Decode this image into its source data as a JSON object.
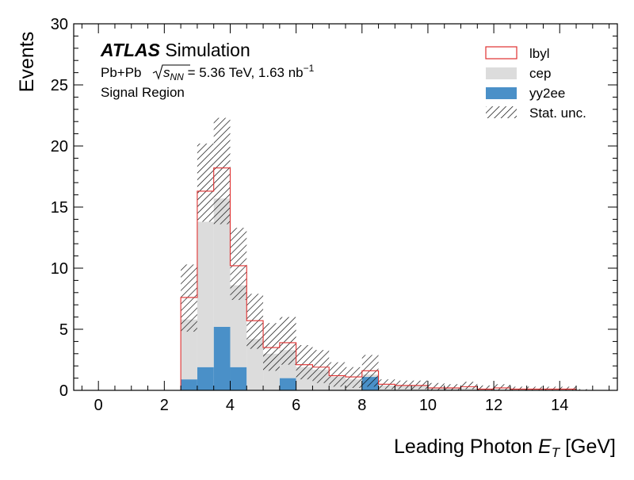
{
  "chart_data": {
    "type": "bar",
    "title": "",
    "xlabel_main": "Leading Photon ",
    "xlabel_var": "E",
    "xlabel_sub": "T",
    "xlabel_unit": " [GeV]",
    "ylabel": "Events",
    "xlim": [
      -0.75,
      15.75
    ],
    "ylim": [
      0,
      30
    ],
    "x_major_ticks": [
      0,
      2,
      4,
      6,
      8,
      10,
      12,
      14
    ],
    "y_major_ticks": [
      0,
      5,
      10,
      15,
      20,
      25,
      30
    ],
    "bin_edges": [
      0,
      0.5,
      1,
      1.5,
      2,
      2.5,
      3,
      3.5,
      4,
      4.5,
      5,
      5.5,
      6,
      6.5,
      7,
      7.5,
      8,
      8.5,
      9,
      9.5,
      10,
      10.5,
      11,
      11.5,
      12,
      12.5,
      13,
      13.5,
      14,
      14.5,
      15
    ],
    "stacked": true,
    "series": [
      {
        "name": "yy2ee",
        "values": [
          0,
          0,
          0,
          0,
          0,
          0.9,
          1.9,
          5.2,
          1.9,
          0,
          0,
          1.0,
          0,
          0,
          0,
          0,
          1.1,
          0,
          0,
          0,
          0,
          0,
          0,
          0,
          0,
          0,
          0,
          0,
          0,
          0
        ],
        "color": "#4a90c8"
      },
      {
        "name": "cep",
        "values": [
          0,
          0,
          0,
          0,
          0,
          4.9,
          11.9,
          10.5,
          6.7,
          4.2,
          3.0,
          2.3,
          1.9,
          1.7,
          1.1,
          0.9,
          0.2,
          0.4,
          0.4,
          0.4,
          0.2,
          0.2,
          0.2,
          0.1,
          0.1,
          0.1,
          0.1,
          0.1,
          0.1,
          0.0
        ],
        "color": "#dcdcdc"
      }
    ],
    "signal": {
      "name": "lbyl",
      "values": [
        0,
        0,
        0,
        0,
        0,
        7.6,
        16.3,
        18.2,
        10.2,
        5.7,
        3.5,
        3.9,
        2.1,
        1.9,
        1.2,
        1.1,
        1.6,
        0.5,
        0.4,
        0.4,
        0.2,
        0.2,
        0.3,
        0.1,
        0.2,
        0.1,
        0.1,
        0.1,
        0.1,
        0.0
      ],
      "color": "#e03030"
    },
    "stat_unc": {
      "name": "Stat. unc.",
      "low": [
        0,
        0,
        0,
        0,
        0,
        4.8,
        13.8,
        13.6,
        7.4,
        3.4,
        1.6,
        2.1,
        0.9,
        0.6,
        0.3,
        0.2,
        0.3,
        0.1,
        0.1,
        0.1,
        0.0,
        0.0,
        0.1,
        0.0,
        0.0,
        0.0,
        0.0,
        0.0,
        0.0,
        0.0
      ],
      "high": [
        0,
        0,
        0,
        0,
        0,
        10.3,
        20.2,
        22.3,
        13.3,
        7.9,
        5.5,
        6.0,
        3.7,
        3.3,
        2.3,
        1.9,
        2.9,
        0.9,
        0.8,
        0.8,
        0.6,
        0.5,
        0.7,
        0.4,
        0.5,
        0.3,
        0.3,
        0.3,
        0.3,
        0.1
      ]
    },
    "legend_position": "top-right",
    "legend_order": [
      "lbyl",
      "cep",
      "yy2ee",
      "Stat. unc."
    ],
    "annotations": {
      "atlas": "ATLAS",
      "atlas_suffix": " Simulation",
      "line2_prefix": "Pb+Pb ",
      "line2_sqrt_s": "s",
      "line2_sub": "NN",
      "line2_value": " = 5.36 TeV, 1.63 nb",
      "line2_exp": "−1",
      "line3": "Signal Region"
    }
  }
}
